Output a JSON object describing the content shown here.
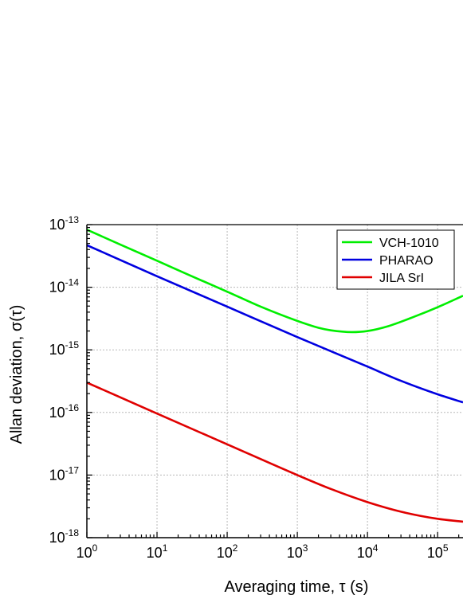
{
  "chart_data": {
    "type": "line",
    "title": "",
    "xlabel": "Averaging time,  τ (s)",
    "ylabel": "Allan deviation,  σ(τ)",
    "x_scale": "log",
    "y_scale": "log",
    "xlim": [
      1,
      230000
    ],
    "ylim": [
      1e-18,
      1e-13
    ],
    "x_ticks": [
      {
        "base": "10",
        "exp": "0",
        "value": 1
      },
      {
        "base": "10",
        "exp": "1",
        "value": 10
      },
      {
        "base": "10",
        "exp": "2",
        "value": 100
      },
      {
        "base": "10",
        "exp": "3",
        "value": 1000
      },
      {
        "base": "10",
        "exp": "4",
        "value": 10000
      },
      {
        "base": "10",
        "exp": "5",
        "value": 100000
      }
    ],
    "y_ticks": [
      {
        "base": "10",
        "exp": "-18",
        "value": 1e-18
      },
      {
        "base": "10",
        "exp": "-17",
        "value": 1e-17
      },
      {
        "base": "10",
        "exp": "-16",
        "value": 1e-16
      },
      {
        "base": "10",
        "exp": "-15",
        "value": 1e-15
      },
      {
        "base": "10",
        "exp": "-14",
        "value": 1e-14
      },
      {
        "base": "10",
        "exp": "-13",
        "value": 1e-13
      }
    ],
    "grid": true,
    "legend_position": "top-right",
    "series": [
      {
        "name": "VCH-1010",
        "color": "#00ee00",
        "points": [
          [
            1,
            8.3e-14
          ],
          [
            3,
            4.8e-14
          ],
          [
            10,
            2.65e-14
          ],
          [
            30,
            1.53e-14
          ],
          [
            100,
            8.5e-15
          ],
          [
            300,
            4.9e-15
          ],
          [
            1000,
            2.9e-15
          ],
          [
            2000,
            2.25e-15
          ],
          [
            3000,
            2.05e-15
          ],
          [
            6000,
            1.92e-15
          ],
          [
            10000,
            2e-15
          ],
          [
            20000,
            2.4e-15
          ],
          [
            50000,
            3.5e-15
          ],
          [
            100000,
            4.8e-15
          ],
          [
            230000,
            7.3e-15
          ]
        ]
      },
      {
        "name": "PHARAO",
        "color": "#0000e0",
        "points": [
          [
            1,
            4.7e-14
          ],
          [
            10,
            1.5e-14
          ],
          [
            100,
            4.9e-15
          ],
          [
            1000,
            1.6e-15
          ],
          [
            10000,
            5.4e-16
          ],
          [
            30000,
            3.2e-16
          ],
          [
            100000,
            1.95e-16
          ],
          [
            230000,
            1.45e-16
          ]
        ]
      },
      {
        "name": "JILA SrI",
        "color": "#e00000",
        "points": [
          [
            1,
            3e-16
          ],
          [
            10,
            9.6e-17
          ],
          [
            100,
            3.1e-17
          ],
          [
            1000,
            1e-17
          ],
          [
            3000,
            6e-18
          ],
          [
            10000,
            3.7e-18
          ],
          [
            30000,
            2.6e-18
          ],
          [
            100000,
            2e-18
          ],
          [
            230000,
            1.8e-18
          ]
        ]
      }
    ]
  }
}
